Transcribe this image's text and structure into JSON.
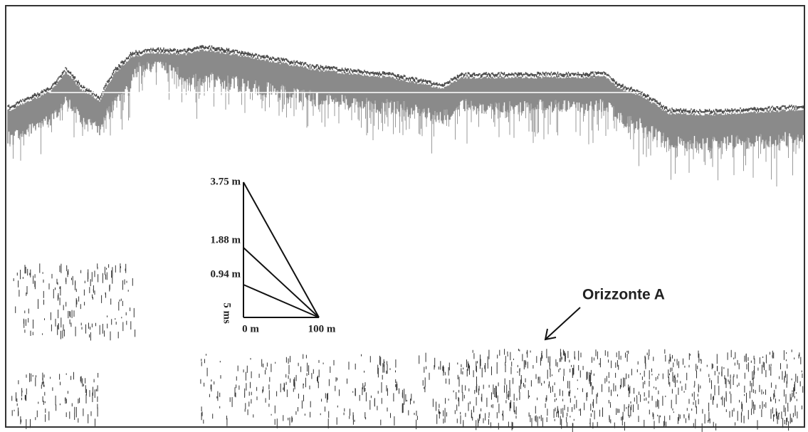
{
  "scale": {
    "labels": [
      "3.75 m",
      "1.88 m",
      "0.94 m"
    ],
    "time": "5 ms",
    "start": "0 m",
    "end": "100 m"
  },
  "annotation": {
    "label": "Orizzonte A"
  }
}
